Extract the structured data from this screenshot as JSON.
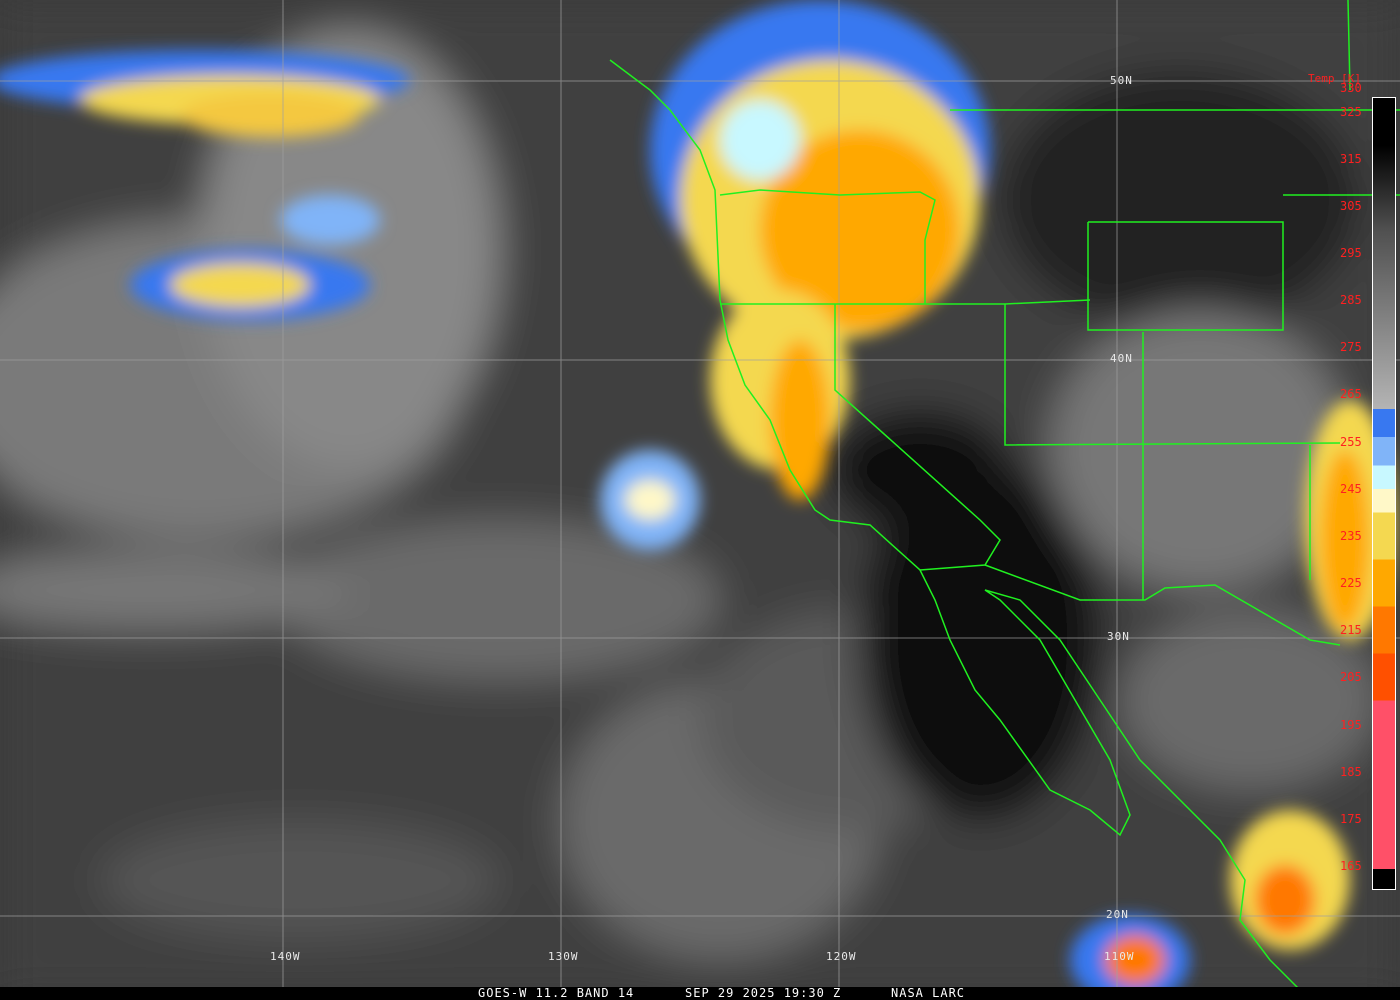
{
  "caption": {
    "satellite": "GOES-W 11.2 BAND 14",
    "datetime": "SEP 29 2025 19:30 Z",
    "source": "NASA LARC"
  },
  "colorbar": {
    "title": "Temp [K]",
    "ticks": [
      "330",
      "325",
      "315",
      "305",
      "295",
      "285",
      "275",
      "265",
      "255",
      "245",
      "235",
      "225",
      "215",
      "205",
      "195",
      "185",
      "175",
      "165"
    ],
    "colors": {
      "cold_top": "#000000",
      "warm_gray": "#b4b4b4",
      "blue": "#3878f0",
      "light_blue": "#80b4f8",
      "pale_cyan": "#c8f8ff",
      "pale_yellow": "#fff8c8",
      "yellow": "#f4d850",
      "orange": "#ffa800",
      "dark_orange": "#ff7800",
      "red_orange": "#ff5000",
      "pink": "#ff5068"
    }
  },
  "grid": {
    "lon_labels": [
      "140W",
      "130W",
      "120W",
      "110W"
    ],
    "lat_labels": [
      "50N",
      "40N",
      "30N",
      "20N"
    ],
    "border_color": "#20f020"
  }
}
